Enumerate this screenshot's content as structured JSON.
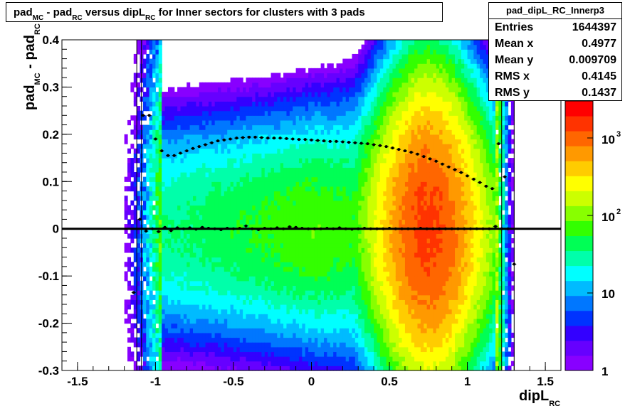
{
  "title": {
    "pad1": "pad",
    "mc": "MC",
    "dash": " - pad",
    "rc": "RC",
    "versus": " versus dipL",
    "rc2": "RC",
    "rest": " for Inner sectors for clusters with 3 pads"
  },
  "stats": {
    "name": "pad_dipL_RC_Innerp3",
    "rows": [
      {
        "label": "Entries",
        "value": "1644397"
      },
      {
        "label": "Mean x",
        "value": "0.4977"
      },
      {
        "label": "Mean y",
        "value": "0.009709"
      },
      {
        "label": "RMS x",
        "value": "0.4145"
      },
      {
        "label": "RMS y",
        "value": "0.1437"
      }
    ]
  },
  "axes": {
    "x_title": "dipL",
    "x_sub": "RC",
    "y_title_a": "pad",
    "y_sub_a": "MC",
    "y_title_b": " - pad",
    "y_sub_b": "RC"
  },
  "chart_data": {
    "type": "heatmap",
    "xlim": [
      -1.6,
      1.6
    ],
    "ylim": [
      -0.3,
      0.4
    ],
    "x_ticks": [
      "-1.5",
      "-1",
      "-0.5",
      "0",
      "0.5",
      "1",
      "1.5"
    ],
    "x_tick_values": [
      -1.5,
      -1,
      -0.5,
      0,
      0.5,
      1,
      1.5
    ],
    "y_ticks": [
      "-0.3",
      "-0.2",
      "-0.1",
      "0",
      "0.1",
      "0.2",
      "0.3",
      "0.4"
    ],
    "y_tick_values": [
      -0.3,
      -0.2,
      -0.1,
      0,
      0.1,
      0.2,
      0.3,
      0.4
    ],
    "z_scale": "log",
    "z_labels": [
      "1",
      "10",
      "10^2",
      "10^3"
    ],
    "z_label_values": [
      1,
      10,
      100,
      1000
    ],
    "zlim": [
      1,
      3000
    ],
    "palette": [
      "#8800ff",
      "#6600ff",
      "#3300ff",
      "#0033ff",
      "#0077ff",
      "#00bbff",
      "#00ffff",
      "#00ffaa",
      "#00ff55",
      "#33ff00",
      "#88ff00",
      "#ccff00",
      "#ffff00",
      "#ffcc00",
      "#ff9900",
      "#ff6600",
      "#ff3300",
      "#ff0000"
    ],
    "rms_profile": {
      "x": [
        -1.08,
        -1.04,
        -1.0,
        -0.96,
        -0.92,
        -0.88,
        -0.84,
        -0.8,
        -0.76,
        -0.72,
        -0.68,
        -0.64,
        -0.6,
        -0.56,
        -0.52,
        -0.48,
        -0.44,
        -0.4,
        -0.36,
        -0.32,
        -0.28,
        -0.24,
        -0.2,
        -0.16,
        -0.12,
        -0.08,
        -0.04,
        0.0,
        0.04,
        0.08,
        0.12,
        0.16,
        0.2,
        0.24,
        0.28,
        0.32,
        0.36,
        0.4,
        0.44,
        0.48,
        0.52,
        0.56,
        0.6,
        0.64,
        0.68,
        0.72,
        0.76,
        0.8,
        0.84,
        0.88,
        0.92,
        0.96,
        1.0,
        1.04,
        1.08,
        1.12,
        1.16,
        1.2,
        1.24
      ],
      "y": [
        0.24,
        0.24,
        0.19,
        0.165,
        0.155,
        0.155,
        0.16,
        0.165,
        0.17,
        0.174,
        0.178,
        0.182,
        0.186,
        0.188,
        0.19,
        0.192,
        0.193,
        0.194,
        0.194,
        0.193,
        0.192,
        0.192,
        0.192,
        0.191,
        0.19,
        0.189,
        0.189,
        0.188,
        0.187,
        0.186,
        0.185,
        0.185,
        0.184,
        0.183,
        0.182,
        0.181,
        0.18,
        0.178,
        0.176,
        0.174,
        0.171,
        0.168,
        0.165,
        0.162,
        0.158,
        0.153,
        0.148,
        0.143,
        0.137,
        0.131,
        0.125,
        0.119,
        0.112,
        0.105,
        0.098,
        0.09,
        0.085,
        0.18,
        0.11
      ]
    },
    "mean_profile": {
      "x": [
        -1.14,
        -1.1,
        -1.06,
        -1.02,
        -0.98,
        -0.94,
        -0.9,
        -0.86,
        -0.82,
        -0.78,
        -0.74,
        -0.7,
        -0.66,
        -0.62,
        -0.58,
        -0.54,
        -0.5,
        -0.46,
        -0.42,
        -0.38,
        -0.34,
        -0.3,
        -0.26,
        -0.22,
        -0.18,
        -0.14,
        -0.1,
        -0.06,
        -0.02,
        0.02,
        0.06,
        0.1,
        0.14,
        0.18,
        0.22,
        0.26,
        0.3,
        0.34,
        0.38,
        0.42,
        0.46,
        0.5,
        0.54,
        0.58,
        0.62,
        0.66,
        0.7,
        0.74,
        0.78,
        0.82,
        0.86,
        0.9,
        0.94,
        0.98,
        1.02,
        1.06,
        1.1,
        1.14,
        1.18,
        1.22,
        1.26,
        1.3
      ],
      "y": [
        -0.135,
        0.02,
        -0.005,
        0.0,
        -0.006,
        0.003,
        -0.004,
        0.002,
        0.0,
        0.002,
        -0.001,
        0.003,
        0.001,
        0.0,
        -0.002,
        0.001,
        0.0,
        0.001,
        0.006,
        0.0,
        -0.002,
        0.001,
        0.0,
        0.002,
        0.0,
        0.004,
        0.003,
        0.001,
        0.0,
        0.0,
        0.0,
        0.001,
        0.0,
        0.002,
        0.0,
        -0.001,
        0.0,
        0.001,
        0.0,
        0.0,
        0.0,
        0.001,
        0.0,
        0.0,
        0.0,
        0.0,
        0.001,
        0.0,
        0.0,
        0.0,
        0.0,
        0.0,
        0.0,
        0.0,
        0.0,
        0.0,
        0.0,
        0.0,
        0.005,
        0.0,
        0.0,
        -0.075
      ]
    }
  }
}
